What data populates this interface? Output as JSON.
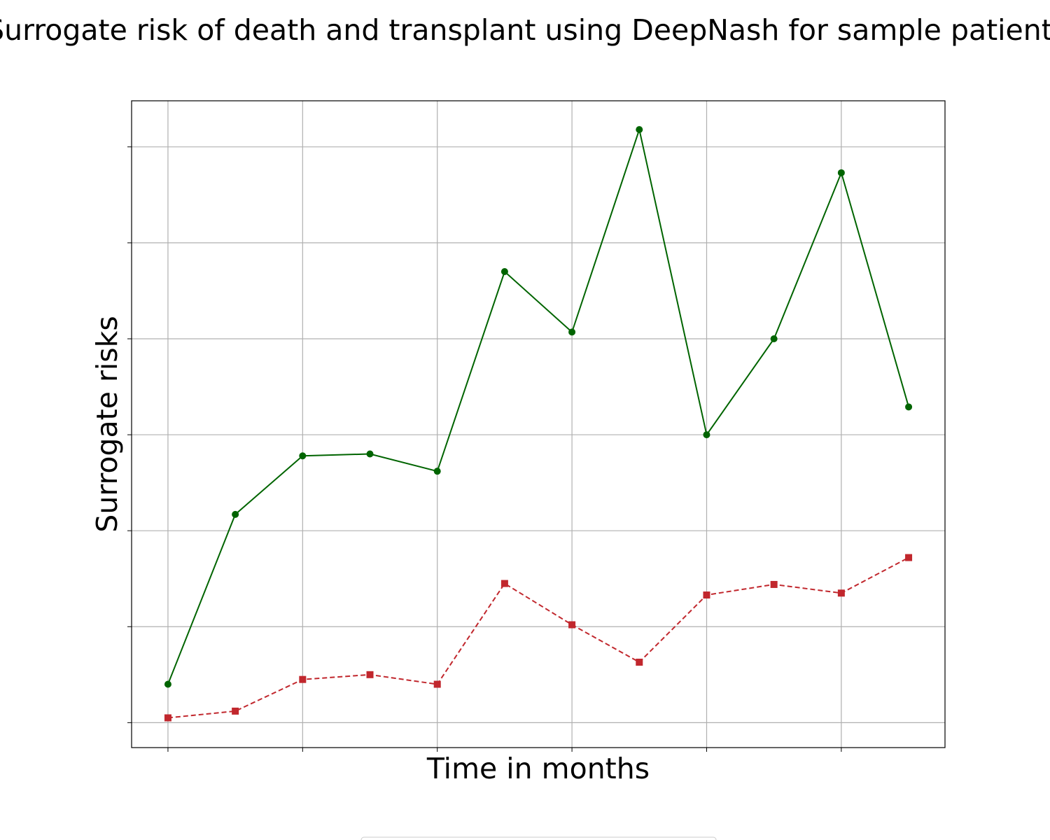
{
  "chart_data": {
    "type": "line",
    "title": "Surrogate risk of death and transplant using DeepNash for sample patient",
    "xlabel": "Time in months",
    "ylabel": "Surrogate risks",
    "x": [
      0,
      1,
      2,
      3,
      4,
      5,
      6,
      7,
      8,
      9,
      10,
      11
    ],
    "xlim": [
      -0.54,
      11.54
    ],
    "ylim": [
      -0.26,
      6.48
    ],
    "x_ticks": [
      0,
      2,
      4,
      6,
      8,
      10
    ],
    "y_ticks": [
      0,
      1,
      2,
      3,
      4,
      5,
      6
    ],
    "tick_labels_shown": false,
    "grid": true,
    "series": [
      {
        "color": "#006400",
        "line_style": "solid",
        "marker": "circle",
        "values": [
          0.4,
          2.17,
          2.78,
          2.8,
          2.62,
          4.7,
          4.07,
          6.18,
          3.0,
          4.0,
          5.73,
          3.29
        ]
      },
      {
        "color": "#c1272d",
        "line_style": "dashed",
        "marker": "square",
        "values": [
          0.05,
          0.12,
          0.45,
          0.5,
          0.4,
          1.45,
          1.02,
          0.63,
          1.33,
          1.44,
          1.35,
          1.72
        ]
      }
    ]
  }
}
